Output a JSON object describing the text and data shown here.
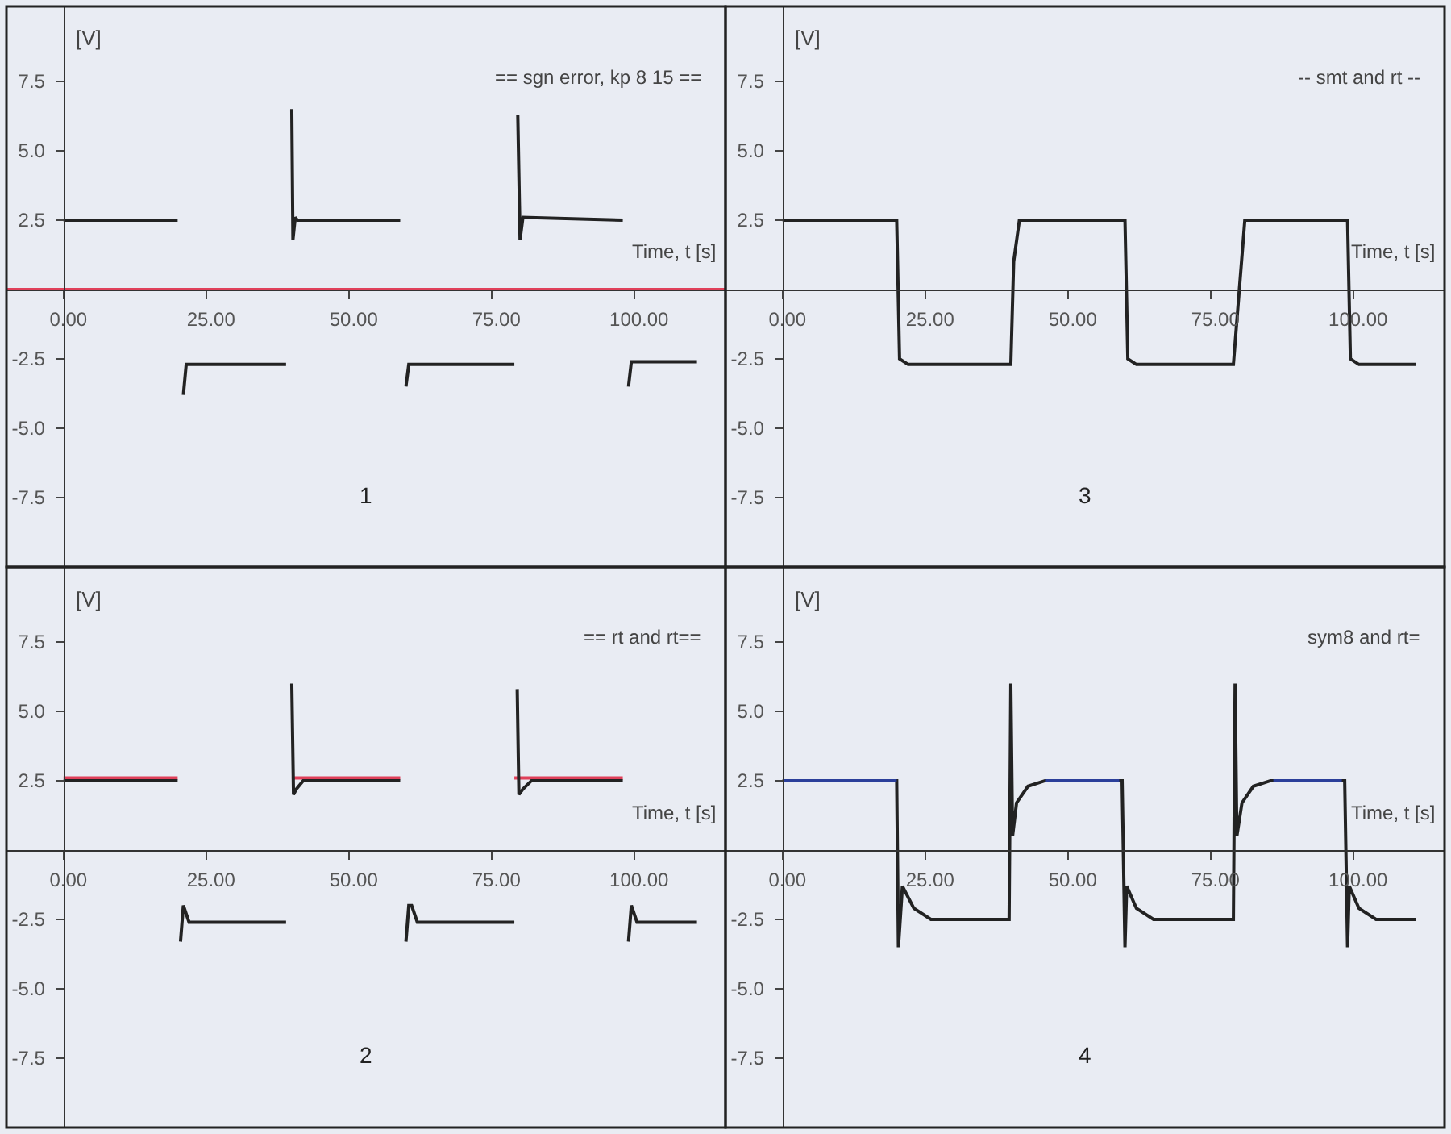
{
  "chart_data": [
    {
      "type": "line",
      "title": "== sgn error, kp 8 15 ==",
      "xlabel": "Time, t [s]",
      "ylabel": "[V]",
      "annotations": [
        "1"
      ],
      "xlim": [
        -10,
        116
      ],
      "ylim": [
        -10,
        10.2
      ],
      "xticks": [
        {
          "value": 0,
          "label": "0.00"
        },
        {
          "value": 25,
          "label": "25.00"
        },
        {
          "value": 50,
          "label": "50.00"
        },
        {
          "value": 75,
          "label": "75.00"
        },
        {
          "value": 100,
          "label": "100.00"
        }
      ],
      "yticks": [
        {
          "value": -7.5,
          "label": "-7.5"
        },
        {
          "value": -5,
          "label": "-5.0"
        },
        {
          "value": -2.5,
          "label": "-2.5"
        },
        {
          "value": 2.5,
          "label": "2.5"
        },
        {
          "value": 5,
          "label": "5.0"
        },
        {
          "value": 7.5,
          "label": "7.5"
        }
      ],
      "series": [
        {
          "color": "#e0405a",
          "x": [
            -10,
            116
          ],
          "values": [
            0,
            0
          ]
        },
        {
          "color": "#222222",
          "x": [
            0,
            20,
            20.5,
            21,
            21.5,
            39,
            39.5,
            40,
            40.2,
            40.6,
            41,
            59,
            59.5,
            60,
            60.5,
            79,
            79.3,
            79.6,
            80,
            80.5,
            98,
            98.5,
            99,
            99.5,
            111
          ],
          "values": [
            2.5,
            2.5,
            null,
            -3.8,
            -2.7,
            -2.7,
            null,
            6.5,
            1.8,
            2.6,
            2.5,
            2.5,
            null,
            -3.5,
            -2.7,
            -2.7,
            null,
            6.3,
            1.8,
            2.6,
            2.5,
            null,
            -3.5,
            -2.6,
            -2.6
          ]
        }
      ]
    },
    {
      "type": "line",
      "title": "-- smt and rt --",
      "xlabel": "Time, t [s]",
      "ylabel": "[V]",
      "annotations": [
        "3"
      ],
      "xlim": [
        -10,
        116
      ],
      "ylim": [
        -10,
        10.2
      ],
      "xticks": [
        {
          "value": 0,
          "label": "0.00"
        },
        {
          "value": 25,
          "label": "25.00"
        },
        {
          "value": 50,
          "label": "50.00"
        },
        {
          "value": 75,
          "label": "75.00"
        },
        {
          "value": 100,
          "label": "100.00"
        }
      ],
      "yticks": [
        {
          "value": -7.5,
          "label": "-7.5"
        },
        {
          "value": -5,
          "label": "-5.0"
        },
        {
          "value": -2.5,
          "label": "-2.5"
        },
        {
          "value": 2.5,
          "label": "2.5"
        },
        {
          "value": 5,
          "label": "5.0"
        },
        {
          "value": 7.5,
          "label": "7.5"
        }
      ],
      "series": [
        {
          "color": "#222222",
          "x": [
            0,
            20,
            20.5,
            22,
            40,
            40.5,
            41.5,
            60,
            60.5,
            62,
            79,
            81,
            99,
            99.5,
            101,
            111
          ],
          "values": [
            2.5,
            2.5,
            -2.5,
            -2.7,
            -2.7,
            1,
            2.5,
            2.5,
            -2.5,
            -2.7,
            -2.7,
            2.5,
            2.5,
            -2.5,
            -2.7,
            -2.7
          ]
        }
      ]
    },
    {
      "type": "line",
      "title": "== rt and rt==",
      "xlabel": "Time, t [s]",
      "ylabel": "[V]",
      "annotations": [
        "2"
      ],
      "xlim": [
        -10,
        116
      ],
      "ylim": [
        -10,
        10.2
      ],
      "xticks": [
        {
          "value": 0,
          "label": "0.00"
        },
        {
          "value": 25,
          "label": "25.00"
        },
        {
          "value": 50,
          "label": "50.00"
        },
        {
          "value": 75,
          "label": "75.00"
        },
        {
          "value": 100,
          "label": "100.00"
        }
      ],
      "yticks": [
        {
          "value": -7.5,
          "label": "-7.5"
        },
        {
          "value": -5,
          "label": "-5.0"
        },
        {
          "value": -2.5,
          "label": "-2.5"
        },
        {
          "value": 2.5,
          "label": "2.5"
        },
        {
          "value": 5,
          "label": "5.0"
        },
        {
          "value": 7.5,
          "label": "7.5"
        }
      ],
      "series": [
        {
          "color": "#e0405a",
          "x": [
            0,
            20,
            30,
            40,
            59,
            70,
            79,
            98
          ],
          "values": [
            2.6,
            2.6,
            null,
            2.6,
            2.6,
            null,
            2.6,
            2.6
          ]
        },
        {
          "color": "#222222",
          "x": [
            0,
            20,
            20.3,
            20.5,
            21,
            22,
            39,
            39.5,
            40,
            40.3,
            40.8,
            42,
            59,
            59.5,
            60,
            60.5,
            61,
            62,
            79,
            79.3,
            79.5,
            79.8,
            80.5,
            82,
            98,
            98.5,
            99,
            99.5,
            100.5,
            111
          ],
          "values": [
            2.5,
            2.5,
            null,
            -3.3,
            -2.0,
            -2.6,
            -2.6,
            null,
            6,
            2.0,
            2.2,
            2.5,
            2.5,
            null,
            -3.3,
            -2.0,
            -2.0,
            -2.6,
            -2.6,
            null,
            5.8,
            2.0,
            2.2,
            2.5,
            2.5,
            null,
            -3.3,
            -2.0,
            -2.6,
            -2.6
          ]
        }
      ]
    },
    {
      "type": "line",
      "title": "sym8 and rt=",
      "xlabel": "Time, t [s]",
      "ylabel": "[V]",
      "annotations": [
        "4"
      ],
      "xlim": [
        -10,
        116
      ],
      "ylim": [
        -10,
        10.2
      ],
      "xticks": [
        {
          "value": 0,
          "label": "0.00"
        },
        {
          "value": 25,
          "label": "25.00"
        },
        {
          "value": 50,
          "label": "50.00"
        },
        {
          "value": 75,
          "label": "75.00"
        },
        {
          "value": 100,
          "label": "100.00"
        }
      ],
      "yticks": [
        {
          "value": -7.5,
          "label": "-7.5"
        },
        {
          "value": -5,
          "label": "-5.0"
        },
        {
          "value": -2.5,
          "label": "-2.5"
        },
        {
          "value": 2.5,
          "label": "2.5"
        },
        {
          "value": 5,
          "label": "5.0"
        },
        {
          "value": 7.5,
          "label": "7.5"
        }
      ],
      "series": [
        {
          "color": "#222222",
          "x": [
            0,
            20,
            20.3,
            21,
            23,
            26,
            39.7,
            40,
            40.3,
            41,
            43,
            46,
            59.5,
            60,
            60.3,
            62,
            65,
            79,
            79.3,
            79.6,
            80.5,
            82.5,
            85.5,
            98.5,
            99,
            99.3,
            101,
            104,
            111
          ],
          "values": [
            2.5,
            2.5,
            -3.5,
            -1.3,
            -2.1,
            -2.5,
            -2.5,
            6,
            0.5,
            1.7,
            2.3,
            2.5,
            2.5,
            -3.5,
            -1.3,
            -2.1,
            -2.5,
            -2.5,
            6,
            0.5,
            1.7,
            2.3,
            2.5,
            2.5,
            -3.5,
            -1.3,
            -2.1,
            -2.5,
            -2.5
          ]
        },
        {
          "color": "#2b3f9a",
          "x": [
            0,
            20,
            30,
            46,
            59,
            70,
            86,
            98
          ],
          "values": [
            2.5,
            2.5,
            null,
            2.5,
            2.5,
            null,
            2.5,
            2.5
          ]
        }
      ]
    }
  ]
}
